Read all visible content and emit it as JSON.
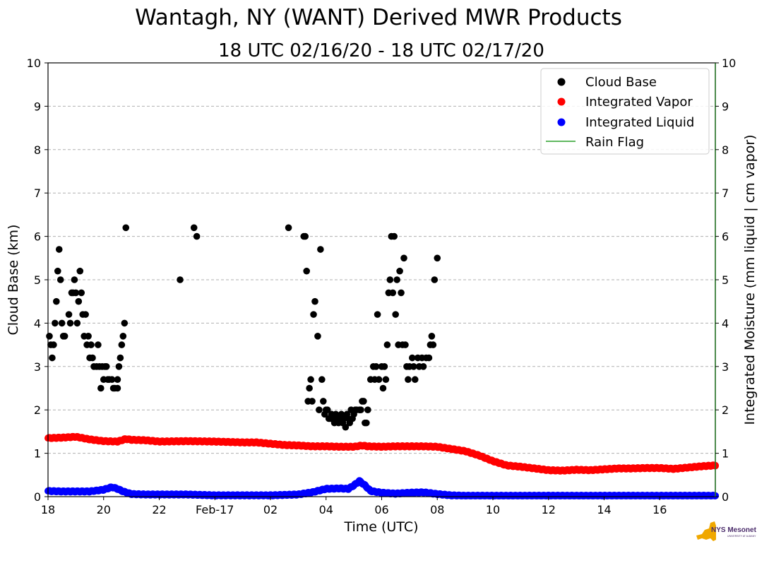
{
  "chart_data": {
    "type": "scatter",
    "title": "Wantagh, NY (WANT) Derived MWR Products",
    "subtitle": "18 UTC 02/16/20 - 18 UTC 02/17/20",
    "xlabel": "Time (UTC)",
    "ylabel_left": "Cloud Base (km)",
    "ylabel_right": "Integrated Moisture (mm liquid | cm vapor)",
    "xlim": [
      0,
      24
    ],
    "ylim": [
      0,
      10
    ],
    "grid": "horizontal dashed",
    "x_ticks": [
      {
        "x": 0,
        "label": "18"
      },
      {
        "x": 2,
        "label": "20"
      },
      {
        "x": 4,
        "label": "22"
      },
      {
        "x": 6,
        "label": "Feb-17"
      },
      {
        "x": 8,
        "label": "02"
      },
      {
        "x": 10,
        "label": "04"
      },
      {
        "x": 12,
        "label": "06"
      },
      {
        "x": 14,
        "label": "08"
      },
      {
        "x": 16,
        "label": "10"
      },
      {
        "x": 18,
        "label": "12"
      },
      {
        "x": 20,
        "label": "14"
      },
      {
        "x": 22,
        "label": "16"
      }
    ],
    "y_ticks": [
      "0",
      "1",
      "2",
      "3",
      "4",
      "5",
      "6",
      "7",
      "8",
      "9",
      "10"
    ],
    "legend": {
      "position": "top-right",
      "entries": [
        "Cloud Base",
        "Integrated Vapor",
        "Integrated Liquid",
        "Rain Flag"
      ]
    },
    "colors": {
      "cloud_base": "#000000",
      "vapor": "#ff0000",
      "liquid": "#0000ff",
      "rain_flag": "#2ca02c",
      "grid": "#b0b0b0"
    },
    "series": [
      {
        "name": "Cloud Base",
        "note": "x = hours since 18 UTC 02/16/20, y = km",
        "points": [
          [
            0.05,
            3.7
          ],
          [
            0.1,
            3.5
          ],
          [
            0.15,
            3.2
          ],
          [
            0.2,
            3.5
          ],
          [
            0.25,
            4.0
          ],
          [
            0.3,
            4.5
          ],
          [
            0.35,
            5.2
          ],
          [
            0.4,
            5.7
          ],
          [
            0.45,
            5.0
          ],
          [
            0.5,
            4.0
          ],
          [
            0.55,
            3.7
          ],
          [
            0.6,
            3.7
          ],
          [
            0.75,
            4.2
          ],
          [
            0.8,
            4.0
          ],
          [
            0.85,
            4.7
          ],
          [
            0.9,
            4.7
          ],
          [
            0.95,
            5.0
          ],
          [
            1.0,
            4.7
          ],
          [
            1.05,
            4.0
          ],
          [
            1.1,
            4.5
          ],
          [
            1.15,
            5.2
          ],
          [
            1.2,
            4.7
          ],
          [
            1.25,
            4.2
          ],
          [
            1.3,
            3.7
          ],
          [
            1.35,
            4.2
          ],
          [
            1.4,
            3.5
          ],
          [
            1.45,
            3.7
          ],
          [
            1.5,
            3.2
          ],
          [
            1.55,
            3.5
          ],
          [
            1.6,
            3.2
          ],
          [
            1.65,
            3.0
          ],
          [
            1.75,
            3.0
          ],
          [
            1.8,
            3.5
          ],
          [
            1.85,
            3.0
          ],
          [
            1.9,
            2.5
          ],
          [
            1.95,
            3.0
          ],
          [
            2.0,
            2.7
          ],
          [
            2.05,
            3.0
          ],
          [
            2.1,
            3.0
          ],
          [
            2.15,
            2.7
          ],
          [
            2.2,
            2.7
          ],
          [
            2.3,
            2.7
          ],
          [
            2.35,
            2.5
          ],
          [
            2.4,
            2.5
          ],
          [
            2.5,
            2.5
          ],
          [
            2.5,
            2.7
          ],
          [
            2.55,
            3.0
          ],
          [
            2.6,
            3.2
          ],
          [
            2.65,
            3.5
          ],
          [
            2.7,
            3.7
          ],
          [
            2.75,
            4.0
          ],
          [
            2.8,
            6.2
          ],
          [
            4.75,
            5.0
          ],
          [
            5.25,
            6.2
          ],
          [
            5.35,
            6.0
          ],
          [
            8.65,
            6.2
          ],
          [
            9.2,
            6.0
          ],
          [
            9.25,
            6.0
          ],
          [
            9.3,
            5.2
          ],
          [
            9.35,
            2.2
          ],
          [
            9.4,
            2.5
          ],
          [
            9.45,
            2.7
          ],
          [
            9.5,
            2.2
          ],
          [
            9.55,
            4.2
          ],
          [
            9.6,
            4.5
          ],
          [
            9.7,
            3.7
          ],
          [
            9.75,
            2.0
          ],
          [
            9.8,
            5.7
          ],
          [
            9.85,
            2.7
          ],
          [
            9.9,
            2.2
          ],
          [
            9.95,
            1.9
          ],
          [
            10.0,
            2.0
          ],
          [
            10.05,
            2.0
          ],
          [
            10.1,
            1.8
          ],
          [
            10.15,
            1.8
          ],
          [
            10.2,
            1.9
          ],
          [
            10.25,
            1.8
          ],
          [
            10.3,
            1.7
          ],
          [
            10.35,
            1.9
          ],
          [
            10.4,
            1.8
          ],
          [
            10.45,
            1.7
          ],
          [
            10.5,
            1.8
          ],
          [
            10.55,
            1.9
          ],
          [
            10.6,
            1.7
          ],
          [
            10.65,
            1.8
          ],
          [
            10.7,
            1.6
          ],
          [
            10.75,
            1.9
          ],
          [
            10.8,
            1.8
          ],
          [
            10.85,
            1.7
          ],
          [
            10.9,
            2.0
          ],
          [
            10.95,
            1.8
          ],
          [
            11.0,
            1.9
          ],
          [
            11.05,
            2.0
          ],
          [
            11.1,
            2.0
          ],
          [
            11.2,
            2.0
          ],
          [
            11.25,
            2.0
          ],
          [
            11.3,
            2.2
          ],
          [
            11.35,
            2.2
          ],
          [
            11.4,
            1.7
          ],
          [
            11.45,
            1.7
          ],
          [
            11.5,
            2.0
          ],
          [
            11.6,
            2.7
          ],
          [
            11.7,
            3.0
          ],
          [
            11.75,
            2.7
          ],
          [
            11.8,
            3.0
          ],
          [
            11.85,
            4.2
          ],
          [
            11.9,
            2.7
          ],
          [
            12.0,
            3.0
          ],
          [
            12.05,
            2.5
          ],
          [
            12.1,
            3.0
          ],
          [
            12.15,
            2.7
          ],
          [
            12.2,
            3.5
          ],
          [
            12.25,
            4.7
          ],
          [
            12.3,
            5.0
          ],
          [
            12.35,
            6.0
          ],
          [
            12.4,
            4.7
          ],
          [
            12.45,
            6.0
          ],
          [
            12.5,
            4.2
          ],
          [
            12.55,
            5.0
          ],
          [
            12.6,
            3.5
          ],
          [
            12.65,
            5.2
          ],
          [
            12.7,
            4.7
          ],
          [
            12.75,
            3.5
          ],
          [
            12.8,
            5.5
          ],
          [
            12.85,
            3.5
          ],
          [
            12.9,
            3.0
          ],
          [
            12.95,
            2.7
          ],
          [
            13.0,
            3.0
          ],
          [
            13.1,
            3.2
          ],
          [
            13.15,
            3.0
          ],
          [
            13.2,
            2.7
          ],
          [
            13.3,
            3.2
          ],
          [
            13.35,
            3.0
          ],
          [
            13.45,
            3.2
          ],
          [
            13.5,
            3.0
          ],
          [
            13.6,
            3.2
          ],
          [
            13.7,
            3.2
          ],
          [
            13.75,
            3.5
          ],
          [
            13.8,
            3.7
          ],
          [
            13.85,
            3.5
          ],
          [
            13.9,
            5.0
          ],
          [
            14.0,
            5.5
          ]
        ]
      },
      {
        "name": "Integrated Vapor",
        "note": "x = hours, y = cm",
        "points": [
          [
            0,
            1.35
          ],
          [
            0.5,
            1.36
          ],
          [
            1.0,
            1.38
          ],
          [
            1.5,
            1.32
          ],
          [
            2.0,
            1.28
          ],
          [
            2.5,
            1.27
          ],
          [
            2.8,
            1.33
          ],
          [
            3.0,
            1.31
          ],
          [
            3.5,
            1.3
          ],
          [
            4.0,
            1.27
          ],
          [
            5.0,
            1.28
          ],
          [
            6.0,
            1.27
          ],
          [
            7.0,
            1.25
          ],
          [
            7.5,
            1.25
          ],
          [
            8.0,
            1.22
          ],
          [
            8.5,
            1.19
          ],
          [
            9.0,
            1.18
          ],
          [
            9.5,
            1.16
          ],
          [
            10.0,
            1.16
          ],
          [
            10.5,
            1.15
          ],
          [
            11.0,
            1.15
          ],
          [
            11.3,
            1.18
          ],
          [
            11.5,
            1.16
          ],
          [
            12.0,
            1.15
          ],
          [
            12.5,
            1.16
          ],
          [
            13.0,
            1.16
          ],
          [
            13.5,
            1.16
          ],
          [
            14.0,
            1.15
          ],
          [
            14.5,
            1.1
          ],
          [
            15.0,
            1.05
          ],
          [
            15.5,
            0.95
          ],
          [
            16.0,
            0.82
          ],
          [
            16.5,
            0.72
          ],
          [
            17.0,
            0.69
          ],
          [
            17.5,
            0.65
          ],
          [
            18.0,
            0.61
          ],
          [
            18.5,
            0.6
          ],
          [
            19.0,
            0.62
          ],
          [
            19.5,
            0.61
          ],
          [
            20.0,
            0.63
          ],
          [
            20.5,
            0.65
          ],
          [
            21.0,
            0.65
          ],
          [
            21.5,
            0.66
          ],
          [
            22.0,
            0.66
          ],
          [
            22.5,
            0.64
          ],
          [
            23.0,
            0.67
          ],
          [
            23.5,
            0.7
          ],
          [
            24.0,
            0.72
          ]
        ]
      },
      {
        "name": "Integrated Liquid",
        "note": "x = hours, y = mm",
        "points": [
          [
            0,
            0.13
          ],
          [
            0.5,
            0.12
          ],
          [
            1.0,
            0.12
          ],
          [
            1.5,
            0.12
          ],
          [
            2.0,
            0.16
          ],
          [
            2.3,
            0.22
          ],
          [
            2.5,
            0.18
          ],
          [
            2.7,
            0.12
          ],
          [
            3.0,
            0.06
          ],
          [
            3.5,
            0.05
          ],
          [
            4.0,
            0.05
          ],
          [
            5.0,
            0.05
          ],
          [
            6.0,
            0.03
          ],
          [
            7.0,
            0.03
          ],
          [
            8.0,
            0.03
          ],
          [
            8.5,
            0.04
          ],
          [
            9.0,
            0.05
          ],
          [
            9.5,
            0.1
          ],
          [
            10.0,
            0.18
          ],
          [
            10.5,
            0.19
          ],
          [
            10.8,
            0.18
          ],
          [
            11.0,
            0.26
          ],
          [
            11.2,
            0.36
          ],
          [
            11.4,
            0.26
          ],
          [
            11.6,
            0.13
          ],
          [
            12.0,
            0.09
          ],
          [
            12.5,
            0.07
          ],
          [
            13.0,
            0.09
          ],
          [
            13.5,
            0.1
          ],
          [
            14.0,
            0.06
          ],
          [
            14.5,
            0.03
          ],
          [
            15.0,
            0.02
          ],
          [
            16.0,
            0.02
          ],
          [
            18.0,
            0.02
          ],
          [
            20.0,
            0.02
          ],
          [
            22.0,
            0.02
          ],
          [
            24.0,
            0.02
          ]
        ]
      },
      {
        "name": "Rain Flag",
        "points": []
      }
    ]
  },
  "logo": {
    "text": "NYS Mesonet",
    "subtext": "UNIVERSITY AT ALBANY",
    "color_state": "#f0a800",
    "color_text": "#4b2c6b"
  }
}
